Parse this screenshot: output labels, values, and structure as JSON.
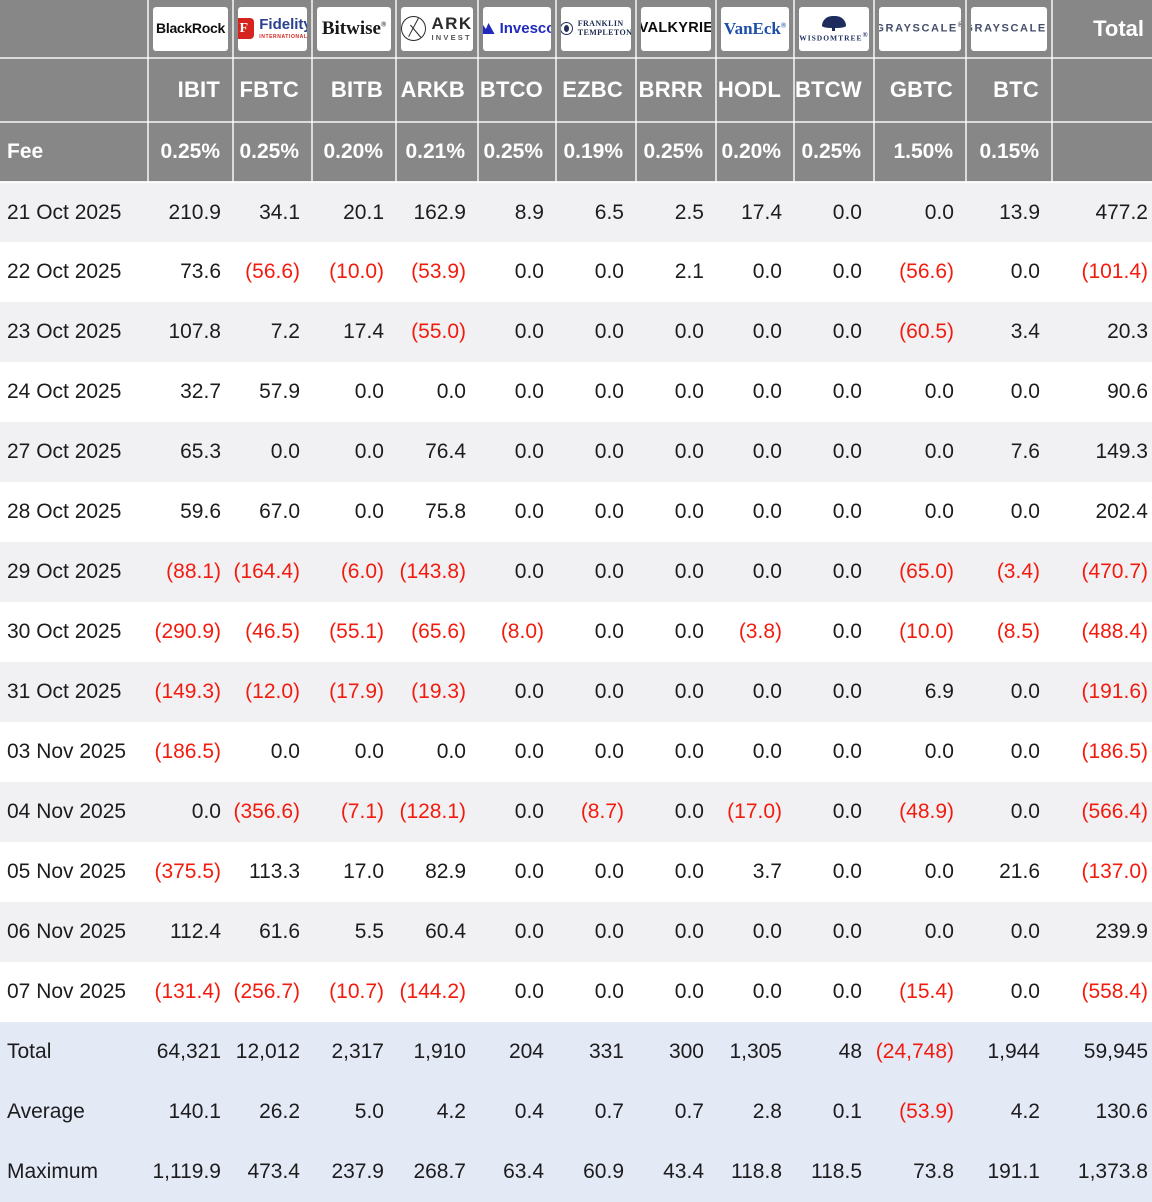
{
  "colors": {
    "header_bg": "#878787",
    "row_stripe": "#f1f1f3",
    "summary_bg": "#e4e9f6",
    "negative_red": "#f21b0e",
    "text": "#1c1c1e"
  },
  "chart_data": {
    "type": "table",
    "fee_row_label": "Fee",
    "total_column_label": "Total",
    "providers": [
      {
        "name": "BlackRock",
        "ticker": "IBIT",
        "fee": "0.25%",
        "logo": {
          "style": "blackrock",
          "lines": [
            {
              "variant": "main",
              "text": "BlackRock"
            }
          ]
        }
      },
      {
        "name": "Fidelity",
        "ticker": "FBTC",
        "fee": "0.25%",
        "logo": {
          "style": "fidelity",
          "icon": {
            "name": "fidelity-f-icon",
            "text": "F"
          },
          "lines": [
            {
              "variant": "main",
              "text": "Fidelity"
            },
            {
              "variant": "sub",
              "text": "INTERNATIONAL"
            }
          ]
        }
      },
      {
        "name": "Bitwise",
        "ticker": "BITB",
        "fee": "0.20%",
        "logo": {
          "style": "bitwise",
          "lines": [
            {
              "variant": "main",
              "text": "Bitwise",
              "sup": "®"
            }
          ]
        }
      },
      {
        "name": "ARK Invest",
        "ticker": "ARKB",
        "fee": "0.21%",
        "logo": {
          "style": "ark",
          "icon": {
            "name": "ark-circle-icon",
            "text": ""
          },
          "lines": [
            {
              "variant": "main",
              "text": "ARK"
            },
            {
              "variant": "sub",
              "text": "INVEST"
            }
          ]
        }
      },
      {
        "name": "Invesco",
        "ticker": "BTCO",
        "fee": "0.25%",
        "logo": {
          "style": "invesco",
          "icon": {
            "name": "invesco-mountain-icon",
            "text": ""
          },
          "lines": [
            {
              "variant": "main",
              "text": "Invesco"
            }
          ]
        }
      },
      {
        "name": "Franklin Templeton",
        "ticker": "EZBC",
        "fee": "0.19%",
        "logo": {
          "style": "franklin",
          "icon": {
            "name": "franklin-portrait-icon",
            "text": ""
          },
          "lines": [
            {
              "variant": "main",
              "text": "FRANKLIN"
            },
            {
              "variant": "sub",
              "text": "TEMPLETON"
            }
          ]
        }
      },
      {
        "name": "Valkyrie",
        "ticker": "BRRR",
        "fee": "0.25%",
        "logo": {
          "style": "valkyrie",
          "lines": [
            {
              "variant": "main",
              "text": "VALKYRIE"
            }
          ]
        }
      },
      {
        "name": "VanEck",
        "ticker": "HODL",
        "fee": "0.20%",
        "logo": {
          "style": "vaneck",
          "lines": [
            {
              "variant": "main",
              "text": "VanEck",
              "sup": "®"
            }
          ]
        }
      },
      {
        "name": "WisdomTree",
        "ticker": "BTCW",
        "fee": "0.25%",
        "logo": {
          "style": "wisdomtree",
          "icon": {
            "name": "wisdomtree-tree-icon",
            "text": ""
          },
          "lines": [
            {
              "variant": "main",
              "text": "WISDOMTREE",
              "sup": "®"
            }
          ]
        }
      },
      {
        "name": "Grayscale",
        "ticker": "GBTC",
        "fee": "1.50%",
        "logo": {
          "style": "grayscale",
          "lines": [
            {
              "variant": "main",
              "text": "GRAYSCALE",
              "sup": "®"
            }
          ]
        }
      },
      {
        "name": "Grayscale",
        "ticker": "BTC",
        "fee": "0.15%",
        "logo": {
          "style": "grayscale",
          "lines": [
            {
              "variant": "main",
              "text": "GRAYSCALE",
              "sup": "®"
            }
          ]
        }
      }
    ],
    "rows": [
      {
        "label": "21 Oct 2025",
        "cells": [
          "210.9",
          "34.1",
          "20.1",
          "162.9",
          "8.9",
          "6.5",
          "2.5",
          "17.4",
          "0.0",
          "0.0",
          "13.9"
        ],
        "total": "477.2"
      },
      {
        "label": "22 Oct 2025",
        "cells": [
          "73.6",
          "(56.6)",
          "(10.0)",
          "(53.9)",
          "0.0",
          "0.0",
          "2.1",
          "0.0",
          "0.0",
          "(56.6)",
          "0.0"
        ],
        "total": "(101.4)"
      },
      {
        "label": "23 Oct 2025",
        "cells": [
          "107.8",
          "7.2",
          "17.4",
          "(55.0)",
          "0.0",
          "0.0",
          "0.0",
          "0.0",
          "0.0",
          "(60.5)",
          "3.4"
        ],
        "total": "20.3"
      },
      {
        "label": "24 Oct 2025",
        "cells": [
          "32.7",
          "57.9",
          "0.0",
          "0.0",
          "0.0",
          "0.0",
          "0.0",
          "0.0",
          "0.0",
          "0.0",
          "0.0"
        ],
        "total": "90.6"
      },
      {
        "label": "27 Oct 2025",
        "cells": [
          "65.3",
          "0.0",
          "0.0",
          "76.4",
          "0.0",
          "0.0",
          "0.0",
          "0.0",
          "0.0",
          "0.0",
          "7.6"
        ],
        "total": "149.3"
      },
      {
        "label": "28 Oct 2025",
        "cells": [
          "59.6",
          "67.0",
          "0.0",
          "75.8",
          "0.0",
          "0.0",
          "0.0",
          "0.0",
          "0.0",
          "0.0",
          "0.0"
        ],
        "total": "202.4"
      },
      {
        "label": "29 Oct 2025",
        "cells": [
          "(88.1)",
          "(164.4)",
          "(6.0)",
          "(143.8)",
          "0.0",
          "0.0",
          "0.0",
          "0.0",
          "0.0",
          "(65.0)",
          "(3.4)"
        ],
        "total": "(470.7)"
      },
      {
        "label": "30 Oct 2025",
        "cells": [
          "(290.9)",
          "(46.5)",
          "(55.1)",
          "(65.6)",
          "(8.0)",
          "0.0",
          "0.0",
          "(3.8)",
          "0.0",
          "(10.0)",
          "(8.5)"
        ],
        "total": "(488.4)"
      },
      {
        "label": "31 Oct 2025",
        "cells": [
          "(149.3)",
          "(12.0)",
          "(17.9)",
          "(19.3)",
          "0.0",
          "0.0",
          "0.0",
          "0.0",
          "0.0",
          "6.9",
          "0.0"
        ],
        "total": "(191.6)"
      },
      {
        "label": "03 Nov 2025",
        "cells": [
          "(186.5)",
          "0.0",
          "0.0",
          "0.0",
          "0.0",
          "0.0",
          "0.0",
          "0.0",
          "0.0",
          "0.0",
          "0.0"
        ],
        "total": "(186.5)"
      },
      {
        "label": "04 Nov 2025",
        "cells": [
          "0.0",
          "(356.6)",
          "(7.1)",
          "(128.1)",
          "0.0",
          "(8.7)",
          "0.0",
          "(17.0)",
          "0.0",
          "(48.9)",
          "0.0"
        ],
        "total": "(566.4)"
      },
      {
        "label": "05 Nov 2025",
        "cells": [
          "(375.5)",
          "113.3",
          "17.0",
          "82.9",
          "0.0",
          "0.0",
          "0.0",
          "3.7",
          "0.0",
          "0.0",
          "21.6"
        ],
        "total": "(137.0)"
      },
      {
        "label": "06 Nov 2025",
        "cells": [
          "112.4",
          "61.6",
          "5.5",
          "60.4",
          "0.0",
          "0.0",
          "0.0",
          "0.0",
          "0.0",
          "0.0",
          "0.0"
        ],
        "total": "239.9"
      },
      {
        "label": "07 Nov 2025",
        "cells": [
          "(131.4)",
          "(256.7)",
          "(10.7)",
          "(144.2)",
          "0.0",
          "0.0",
          "0.0",
          "0.0",
          "0.0",
          "(15.4)",
          "0.0"
        ],
        "total": "(558.4)"
      }
    ],
    "summary_rows": [
      {
        "label": "Total",
        "cells": [
          "64,321",
          "12,012",
          "2,317",
          "1,910",
          "204",
          "331",
          "300",
          "1,305",
          "48",
          "(24,748)",
          "1,944"
        ],
        "total": "59,945"
      },
      {
        "label": "Average",
        "cells": [
          "140.1",
          "26.2",
          "5.0",
          "4.2",
          "0.4",
          "0.7",
          "0.7",
          "2.8",
          "0.1",
          "(53.9)",
          "4.2"
        ],
        "total": "130.6"
      },
      {
        "label": "Maximum",
        "cells": [
          "1,119.9",
          "473.4",
          "237.9",
          "268.7",
          "63.4",
          "60.9",
          "43.4",
          "118.8",
          "118.5",
          "73.8",
          "191.1"
        ],
        "total": "1,373.8"
      }
    ]
  }
}
